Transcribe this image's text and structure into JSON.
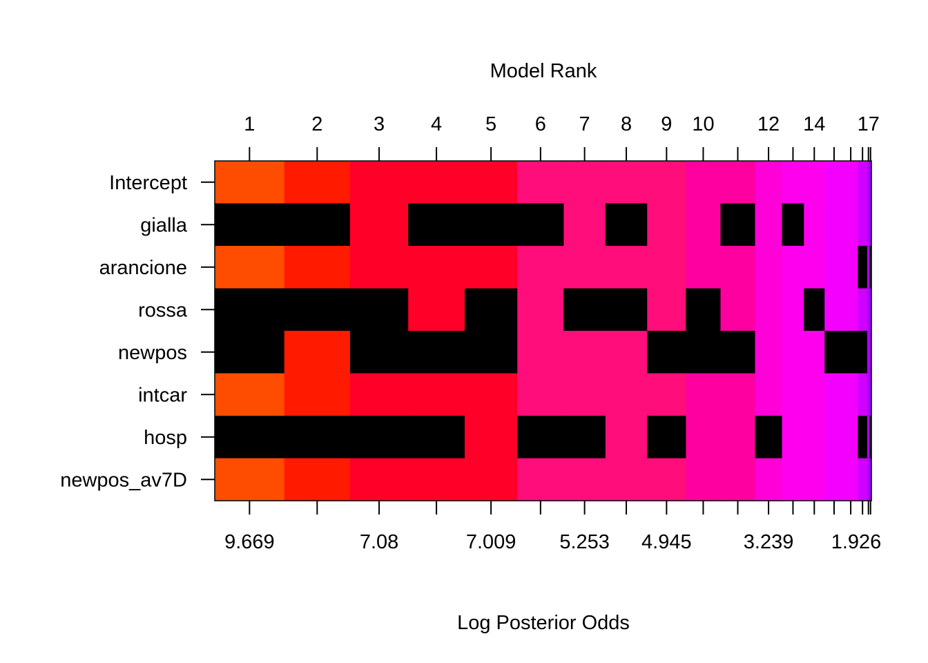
{
  "chart_data": {
    "type": "heatmap",
    "title": "",
    "xlabel_top": "Model Rank",
    "xlabel_bottom": "Log Posterior Odds",
    "variables": [
      "Intercept",
      "gialla",
      "arancione",
      "rossa",
      "newpos",
      "intcar",
      "hosp",
      "newpos_av7D"
    ],
    "top_tick_labels": [
      "1",
      "2",
      "3",
      "4",
      "5",
      "6",
      "7",
      "8",
      "9",
      "10",
      "12",
      "14",
      "17"
    ],
    "bottom_tick_labels": [
      "9.669",
      "7.08",
      "7.009",
      "5.253",
      "4.945",
      "3.239",
      "1.926"
    ],
    "num_models": 19,
    "model_column_weights": [
      1.65,
      1.56,
      1.38,
      1.34,
      1.25,
      1.1,
      0.99,
      0.99,
      0.92,
      0.82,
      0.82,
      0.64,
      0.52,
      0.49,
      0.45,
      0.34,
      0.22,
      0.06,
      0.04
    ],
    "model_colors": [
      "#FF4D00",
      "#FF1A00",
      "#FF0029",
      "#FF0029",
      "#FF0029",
      "#FF0D7A",
      "#FF0D7A",
      "#FF0D7A",
      "#FF0D7A",
      "#FF00A0",
      "#FF00A0",
      "#FF00D8",
      "#FF00EE",
      "#FF00EE",
      "#F400FF",
      "#F400FF",
      "#D000FF",
      "#B000FF",
      "#9000FF"
    ],
    "inclusion": [
      [
        1,
        1,
        1,
        1,
        1,
        1,
        1,
        1,
        1,
        1,
        1,
        1,
        1,
        1,
        1,
        1,
        1,
        1,
        1
      ],
      [
        0,
        0,
        1,
        0,
        0,
        0,
        1,
        0,
        1,
        1,
        0,
        1,
        0,
        1,
        1,
        1,
        1,
        1,
        1
      ],
      [
        1,
        1,
        1,
        1,
        1,
        1,
        1,
        1,
        1,
        1,
        1,
        1,
        1,
        1,
        1,
        1,
        0,
        1,
        0
      ],
      [
        0,
        0,
        0,
        1,
        0,
        1,
        0,
        0,
        1,
        0,
        1,
        1,
        1,
        0,
        1,
        1,
        1,
        1,
        1
      ],
      [
        0,
        1,
        0,
        0,
        0,
        1,
        1,
        1,
        0,
        0,
        0,
        1,
        1,
        1,
        0,
        0,
        0,
        1,
        1
      ],
      [
        1,
        1,
        1,
        1,
        1,
        1,
        1,
        1,
        1,
        1,
        1,
        1,
        1,
        1,
        1,
        1,
        1,
        1,
        1
      ],
      [
        0,
        0,
        0,
        0,
        1,
        0,
        0,
        1,
        0,
        1,
        1,
        0,
        1,
        1,
        1,
        1,
        0,
        1,
        0
      ],
      [
        1,
        1,
        1,
        1,
        1,
        1,
        1,
        1,
        1,
        1,
        1,
        1,
        1,
        1,
        1,
        1,
        1,
        1,
        1
      ]
    ],
    "excluded_color": "#000000",
    "grid": false
  }
}
